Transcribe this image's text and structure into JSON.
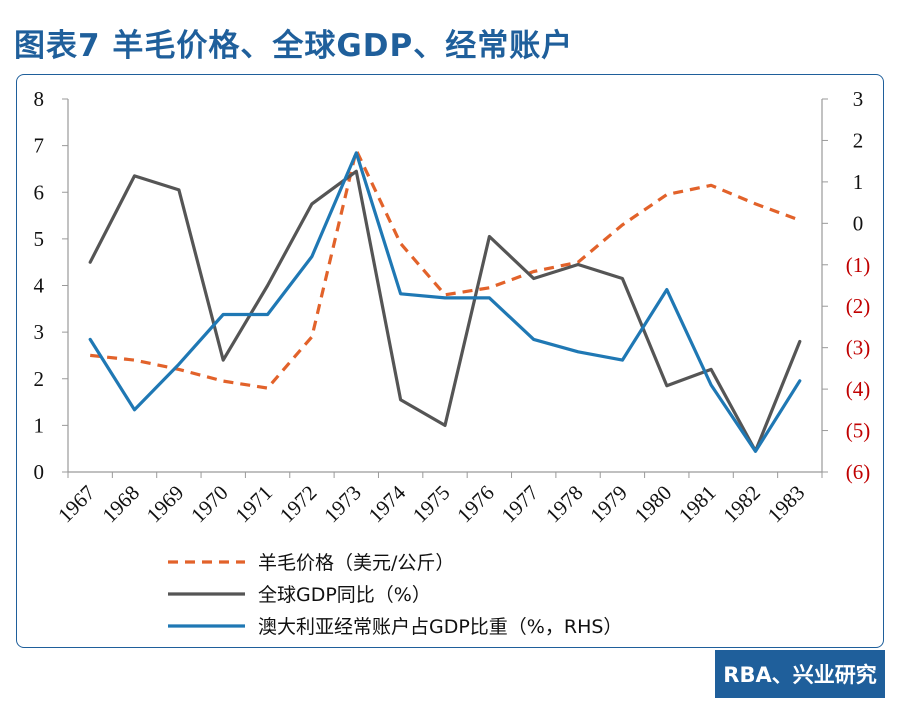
{
  "figure": {
    "title": "图表7 羊毛价格、全球GDP、经常账户",
    "source": "RBA、兴业研究"
  },
  "chart_data": {
    "type": "line",
    "categories": [
      "1967",
      "1968",
      "1969",
      "1970",
      "1971",
      "1972",
      "1973",
      "1974",
      "1975",
      "1976",
      "1977",
      "1978",
      "1979",
      "1980",
      "1981",
      "1982",
      "1983"
    ],
    "y_left": {
      "range": [
        0,
        8
      ],
      "ticks": [
        "0",
        "1",
        "2",
        "3",
        "4",
        "5",
        "6",
        "7",
        "8"
      ]
    },
    "y_right": {
      "range": [
        -6,
        3
      ],
      "ticks": [
        {
          "value": 3,
          "label": "3"
        },
        {
          "value": 2,
          "label": "2"
        },
        {
          "value": 1,
          "label": "1"
        },
        {
          "value": 0,
          "label": "0"
        },
        {
          "value": -1,
          "label": "(1)"
        },
        {
          "value": -2,
          "label": "(2)"
        },
        {
          "value": -3,
          "label": "(3)"
        },
        {
          "value": -4,
          "label": "(4)"
        },
        {
          "value": -5,
          "label": "(5)"
        },
        {
          "value": -6,
          "label": "(6)"
        }
      ]
    },
    "grid": false,
    "legend_position": "bottom",
    "series": [
      {
        "name": "羊毛价格（美元/公斤）",
        "axis": "left",
        "style": "dashed",
        "color": "#e2622a",
        "values": [
          2.5,
          2.4,
          2.2,
          1.95,
          1.8,
          2.9,
          6.9,
          4.9,
          3.8,
          3.95,
          4.3,
          4.5,
          5.3,
          5.95,
          6.15,
          5.75,
          5.4
        ]
      },
      {
        "name": "全球GDP同比（%）",
        "axis": "left",
        "style": "solid",
        "color": "#555555",
        "values": [
          4.5,
          6.35,
          6.05,
          2.4,
          4.0,
          5.75,
          6.45,
          1.55,
          1.0,
          5.05,
          4.15,
          4.45,
          4.15,
          1.85,
          2.2,
          0.45,
          2.8
        ]
      },
      {
        "name": "澳大利亚经常账户占GDP比重（%，RHS）",
        "axis": "right",
        "style": "solid",
        "color": "#1f78b4",
        "values": [
          -2.8,
          -4.5,
          -3.4,
          -2.2,
          -2.2,
          -0.8,
          1.7,
          -1.7,
          -1.8,
          -1.8,
          -2.8,
          -3.1,
          -3.3,
          -1.6,
          -3.9,
          -5.5,
          -3.8
        ]
      }
    ],
    "label_colors": {
      "left_axis": "#111111",
      "right_axis_positive": "#111111",
      "right_axis_negative": "#c00000"
    }
  }
}
